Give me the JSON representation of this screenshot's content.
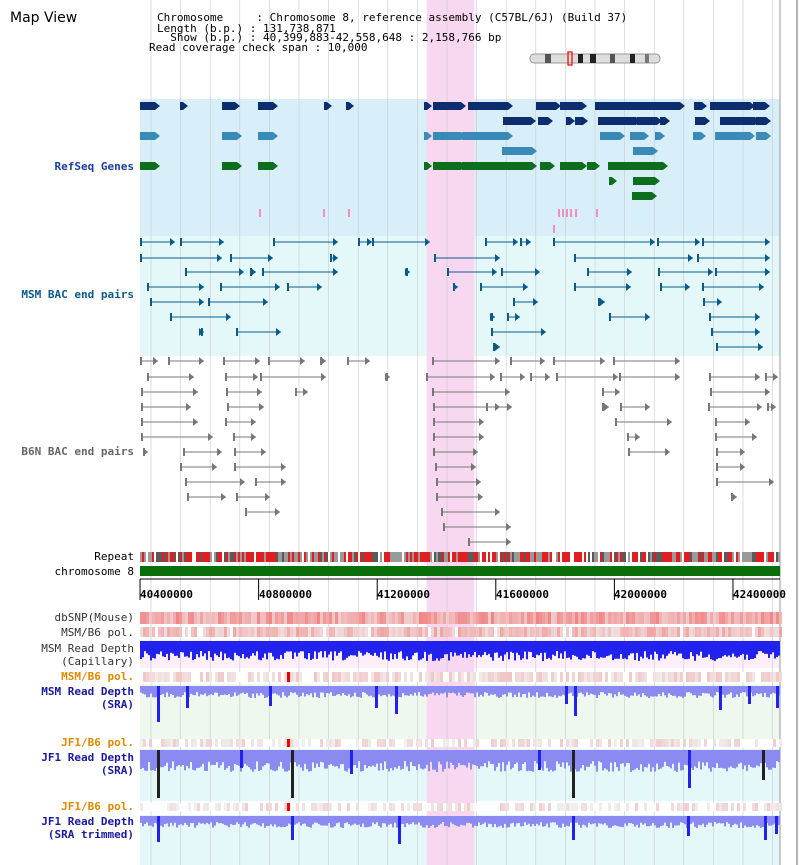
{
  "header": {
    "title": "Map View",
    "info_lines": [
      "Chromosome     : Chromosome 8, reference assembly (C57BL/6J) (Build 37)",
      "Length (b.p.) : 131,738,871",
      "  Show (b.p.) : 40,399,883-42,558,648 : 2,158,766 bp",
      "Read coverage check span : 10,000"
    ]
  },
  "tracks": {
    "refseq": {
      "label": "RefSeq Genes",
      "color": "#1a3ea0"
    },
    "msm_bac": {
      "label": "MSM BAC end pairs",
      "color": "#0a5a8a"
    },
    "b6n_bac": {
      "label": "B6N BAC end pairs",
      "color": "#666666"
    },
    "repeat": {
      "label": "Repeat"
    },
    "chromosome": {
      "label": "chromosome 8"
    },
    "dbsnp": {
      "label": "dbSNP(Mouse)"
    },
    "msm_b6_pol_1": {
      "label": "MSM/B6 pol."
    },
    "msm_depth_cap": {
      "label1": "MSM Read Depth",
      "label2": "(Capillary)"
    },
    "msm_b6_pol_2": {
      "label": "MSM/B6 pol.",
      "color": "#e08a00"
    },
    "msm_depth_sra": {
      "label1": "MSM Read Depth",
      "label2": "(SRA)",
      "color": "#1a1aa0"
    },
    "jf1_b6_pol_1": {
      "label": "JF1/B6 pol.",
      "color": "#e08a00"
    },
    "jf1_depth_sra": {
      "label1": "JF1 Read Depth",
      "label2": "(SRA)",
      "color": "#1a1aa0"
    },
    "jf1_b6_pol_2": {
      "label": "JF1/B6 pol.",
      "color": "#e08a00"
    },
    "jf1_depth_sra_trim": {
      "label1": "JF1 Read Depth",
      "label2": "(SRA trimmed)",
      "color": "#1a1aa0"
    }
  },
  "axis": {
    "ticks": [
      "40400000",
      "40800000",
      "41200000",
      "41600000",
      "42000000",
      "42400000"
    ],
    "tick_values": [
      40400000,
      40800000,
      41200000,
      41600000,
      42000000,
      42400000
    ],
    "range": [
      40399883,
      42558648
    ]
  },
  "highlight": {
    "start": 41367000,
    "end": 41528000,
    "color": "#f8d8f0"
  },
  "colors": {
    "refseq_dark": "#0d2e6e",
    "refseq_light": "#3a8ab8",
    "refseq_green": "#0d6e1e",
    "refseq_bg": "#d8effa",
    "bac_bg": "#e4f8fa",
    "depth_blue": "#2222ee",
    "depth_light": "#8a8af0",
    "snp_red": "#ee3333",
    "chrom_green": "#0a6e0a"
  }
}
